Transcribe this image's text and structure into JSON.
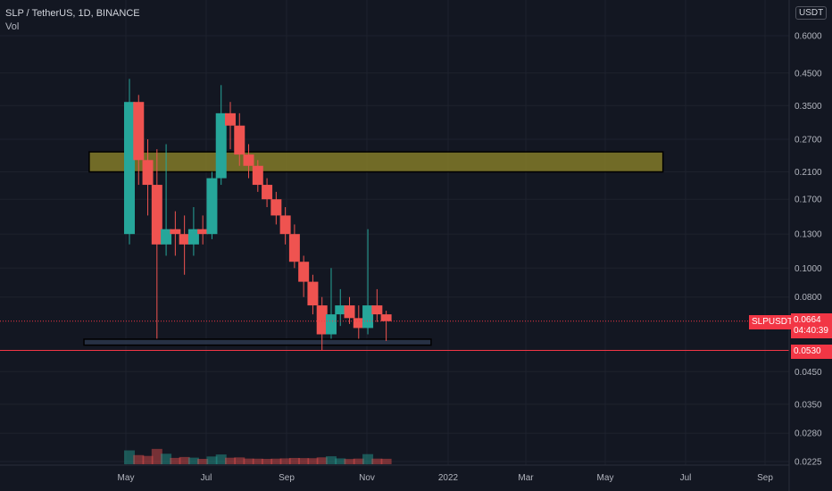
{
  "header": {
    "symbol_line": "SLP / TetherUS, 1D, BINANCE",
    "indicator": "Vol",
    "currency_unit": "USDT"
  },
  "price_scale": {
    "badge_symbol": "SLPUSDT",
    "current_price": "0.0664",
    "countdown": "04:40:39",
    "level_price": "0.0530"
  },
  "colors": {
    "background": "#131722",
    "up": "#26a69a",
    "down": "#ef5350",
    "resistance_zone": "#827a28",
    "support_zone": "#2a3448",
    "level_line": "#f23645"
  },
  "chart_data": {
    "type": "candlestick",
    "y_scale": "log",
    "y_ticks": [
      "0.6000",
      "0.4500",
      "0.3500",
      "0.2700",
      "0.2100",
      "0.1700",
      "0.1300",
      "0.1000",
      "0.0800",
      "0.0450",
      "0.0350",
      "0.0280",
      "0.0225"
    ],
    "x_ticks": [
      "May",
      "Jul",
      "Sep",
      "Nov",
      "2022",
      "Mar",
      "May",
      "Jul",
      "Sep"
    ],
    "zones": [
      {
        "type": "resistance",
        "from": "2021-04-03",
        "to": "2022-06-15",
        "low": 0.21,
        "high": 0.245
      },
      {
        "type": "support",
        "from": "2021-03-30",
        "to": "2021-12-20",
        "low": 0.0552,
        "high": 0.0578
      }
    ],
    "horizontal_lines": [
      {
        "value": 0.053,
        "style": "solid"
      },
      {
        "value": 0.0664,
        "style": "dotted"
      }
    ],
    "ohlc_series": [
      {
        "date": "2021-05-01",
        "open": 0.13,
        "high": 0.43,
        "low": 0.12,
        "close": 0.36
      },
      {
        "date": "2021-05-08",
        "open": 0.36,
        "high": 0.38,
        "low": 0.19,
        "close": 0.23
      },
      {
        "date": "2021-05-15",
        "open": 0.23,
        "high": 0.27,
        "low": 0.15,
        "close": 0.19
      },
      {
        "date": "2021-05-22",
        "open": 0.19,
        "high": 0.25,
        "low": 0.058,
        "close": 0.12
      },
      {
        "date": "2021-05-29",
        "open": 0.12,
        "high": 0.26,
        "low": 0.11,
        "close": 0.135
      },
      {
        "date": "2021-06-05",
        "open": 0.135,
        "high": 0.155,
        "low": 0.11,
        "close": 0.13
      },
      {
        "date": "2021-06-12",
        "open": 0.13,
        "high": 0.15,
        "low": 0.095,
        "close": 0.12
      },
      {
        "date": "2021-06-19",
        "open": 0.12,
        "high": 0.16,
        "low": 0.11,
        "close": 0.135
      },
      {
        "date": "2021-06-26",
        "open": 0.135,
        "high": 0.15,
        "low": 0.12,
        "close": 0.13
      },
      {
        "date": "2021-07-03",
        "open": 0.13,
        "high": 0.21,
        "low": 0.125,
        "close": 0.2
      },
      {
        "date": "2021-07-10",
        "open": 0.2,
        "high": 0.41,
        "low": 0.19,
        "close": 0.33
      },
      {
        "date": "2021-07-17",
        "open": 0.33,
        "high": 0.36,
        "low": 0.25,
        "close": 0.3
      },
      {
        "date": "2021-07-24",
        "open": 0.3,
        "high": 0.33,
        "low": 0.22,
        "close": 0.24
      },
      {
        "date": "2021-07-31",
        "open": 0.24,
        "high": 0.26,
        "low": 0.2,
        "close": 0.22
      },
      {
        "date": "2021-08-07",
        "open": 0.22,
        "high": 0.23,
        "low": 0.18,
        "close": 0.19
      },
      {
        "date": "2021-08-14",
        "open": 0.19,
        "high": 0.2,
        "low": 0.16,
        "close": 0.17
      },
      {
        "date": "2021-08-21",
        "open": 0.17,
        "high": 0.18,
        "low": 0.14,
        "close": 0.15
      },
      {
        "date": "2021-08-28",
        "open": 0.15,
        "high": 0.16,
        "low": 0.12,
        "close": 0.13
      },
      {
        "date": "2021-09-04",
        "open": 0.13,
        "high": 0.14,
        "low": 0.1,
        "close": 0.105
      },
      {
        "date": "2021-09-11",
        "open": 0.105,
        "high": 0.11,
        "low": 0.08,
        "close": 0.09
      },
      {
        "date": "2021-09-18",
        "open": 0.09,
        "high": 0.095,
        "low": 0.07,
        "close": 0.075
      },
      {
        "date": "2021-09-25",
        "open": 0.075,
        "high": 0.08,
        "low": 0.053,
        "close": 0.06
      },
      {
        "date": "2021-10-02",
        "open": 0.06,
        "high": 0.1,
        "low": 0.058,
        "close": 0.07
      },
      {
        "date": "2021-10-09",
        "open": 0.07,
        "high": 0.085,
        "low": 0.064,
        "close": 0.075
      },
      {
        "date": "2021-10-16",
        "open": 0.075,
        "high": 0.08,
        "low": 0.065,
        "close": 0.068
      },
      {
        "date": "2021-10-23",
        "open": 0.068,
        "high": 0.075,
        "low": 0.058,
        "close": 0.063
      },
      {
        "date": "2021-10-30",
        "open": 0.063,
        "high": 0.135,
        "low": 0.06,
        "close": 0.075
      },
      {
        "date": "2021-11-06",
        "open": 0.075,
        "high": 0.085,
        "low": 0.066,
        "close": 0.07
      },
      {
        "date": "2021-11-13",
        "open": 0.07,
        "high": 0.072,
        "low": 0.057,
        "close": 0.0664
      }
    ]
  }
}
